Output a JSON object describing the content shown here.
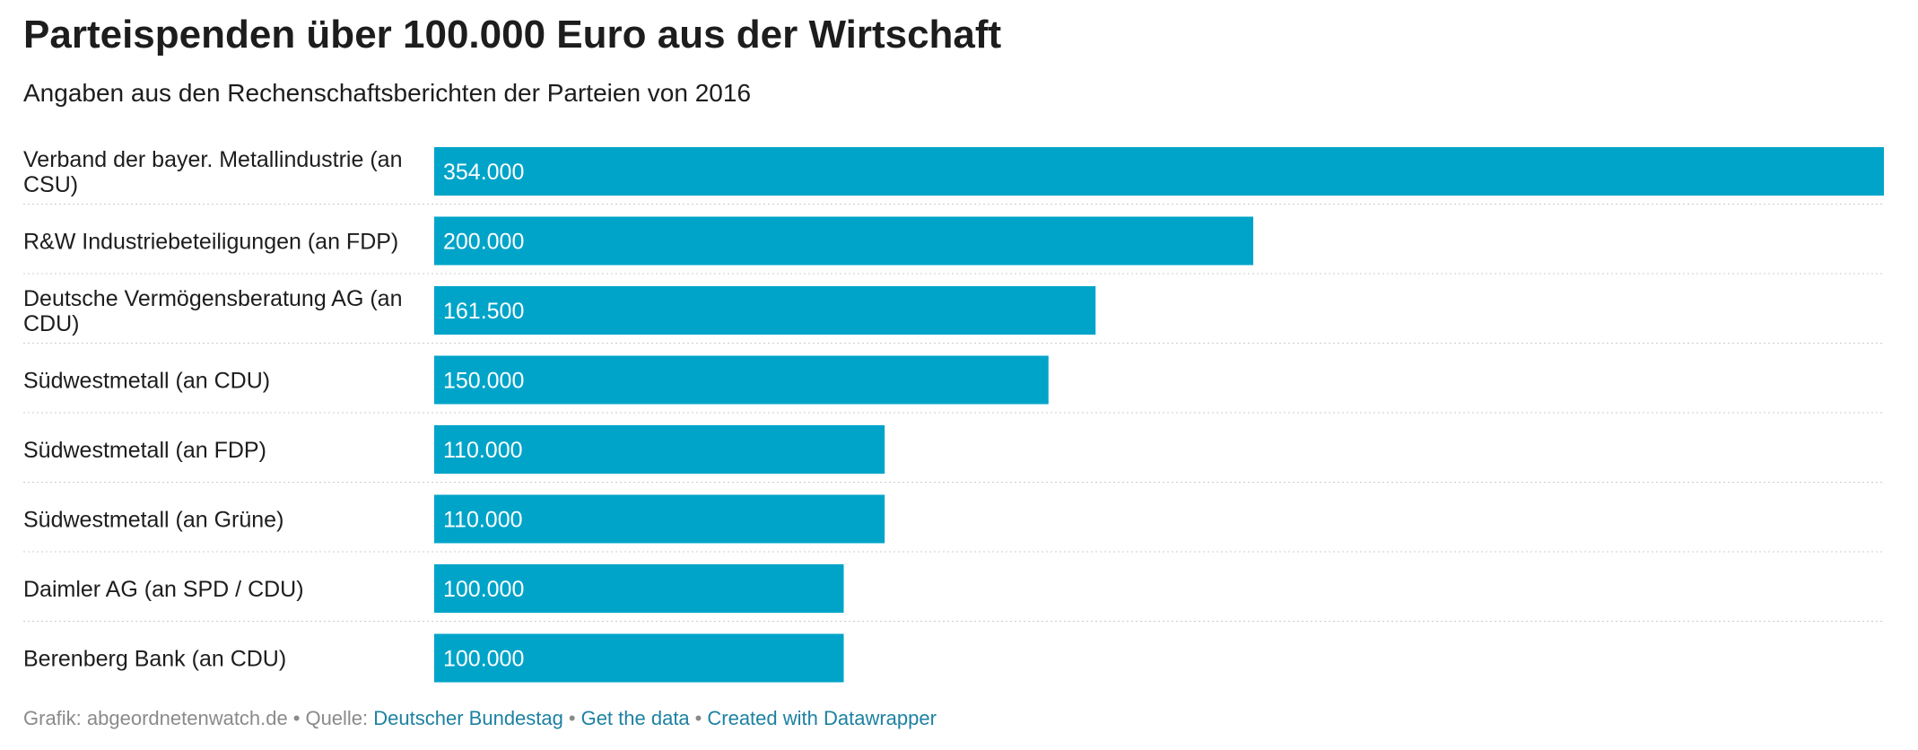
{
  "title": "Parteispenden über 100.000 Euro aus der Wirtschaft",
  "subtitle": "Angaben aus den Rechenschaftsberichten der Parteien von 2016",
  "colors": {
    "bar": "#00a4c9",
    "text": "#1d1d1d",
    "gridline": "#cccccc",
    "footer_text": "#8a8a8a",
    "link": "#1d81a2"
  },
  "chart_data": {
    "type": "bar",
    "orientation": "horizontal",
    "categories": [
      "Verband der bayer. Metallindustrie (an CSU)",
      "R&W Industriebeteiligungen (an FDP)",
      "Deutsche Vermögensberatung AG (an CDU)",
      "Südwestmetall (an CDU)",
      "Südwestmetall (an FDP)",
      "Südwestmetall (an Grüne)",
      "Daimler AG (an SPD / CDU)",
      "Berenberg Bank (an CDU)"
    ],
    "category_lines": [
      [
        "Verband der bayer. Metallindustrie (an",
        "CSU)"
      ],
      [
        "R&W Industriebeteiligungen (an FDP)"
      ],
      [
        "Deutsche Vermögensberatung AG (an",
        "CDU)"
      ],
      [
        "Südwestmetall (an CDU)"
      ],
      [
        "Südwestmetall (an FDP)"
      ],
      [
        "Südwestmetall (an Grüne)"
      ],
      [
        "Daimler AG (an SPD / CDU)"
      ],
      [
        "Berenberg Bank (an CDU)"
      ]
    ],
    "values": [
      354000,
      200000,
      161500,
      150000,
      110000,
      110000,
      100000,
      100000
    ],
    "value_labels": [
      "354.000",
      "200.000",
      "161.500",
      "150.000",
      "110.000",
      "110.000",
      "100.000",
      "100.000"
    ],
    "xlim": [
      0,
      354000
    ],
    "grid": false,
    "legend": "none"
  },
  "footer": {
    "prefix": "Grafik: abgeordnetenwatch.de",
    "source_label": "Quelle:",
    "source_link": "Deutscher Bundestag",
    "get_data": "Get the data",
    "created_with": "Created with Datawrapper",
    "separator": "•"
  }
}
